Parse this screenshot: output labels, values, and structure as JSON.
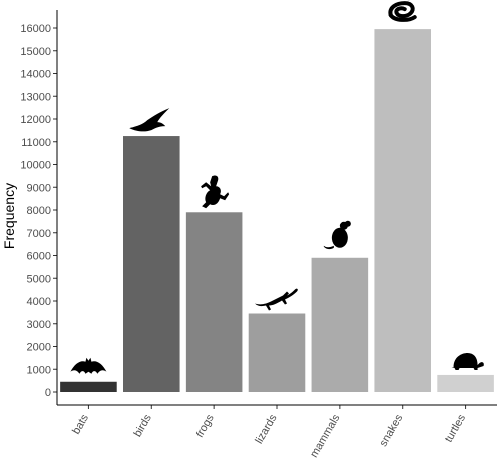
{
  "chart_data": {
    "type": "bar",
    "categories": [
      "bats",
      "birds",
      "frogs",
      "lizards",
      "mammals",
      "snakes",
      "turtles"
    ],
    "values": [
      450,
      11250,
      7900,
      3450,
      5900,
      15950,
      750
    ],
    "colors": [
      "#333333",
      "#636363",
      "#848484",
      "#9e9e9e",
      "#ababab",
      "#bebebe",
      "#d0d0d0"
    ],
    "icons": [
      "bat-icon",
      "bird-icon",
      "frog-icon",
      "lizard-icon",
      "mouse-icon",
      "snake-icon",
      "turtle-icon"
    ],
    "xlabel": "",
    "ylabel": "Frequency",
    "ylim": [
      0,
      16700
    ],
    "yticks": [
      0,
      1000,
      2000,
      3000,
      4000,
      5000,
      6000,
      7000,
      8000,
      9000,
      10000,
      11000,
      12000,
      13000,
      14000,
      15000,
      16000
    ],
    "grid": false,
    "legend": "none"
  }
}
